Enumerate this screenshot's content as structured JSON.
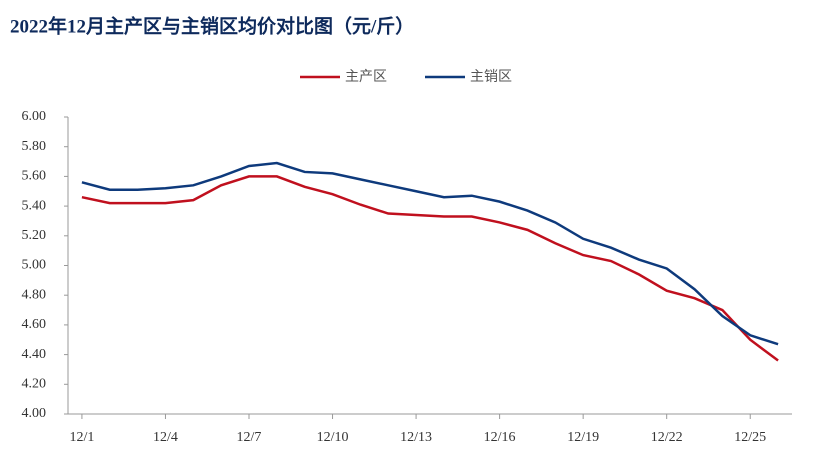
{
  "chart_data": {
    "type": "line",
    "title": "2022年12月主产区与主销区均价对比图（元/斤）",
    "categories": [
      "12/1",
      null,
      null,
      "12/4",
      null,
      null,
      "12/7",
      null,
      null,
      "12/10",
      null,
      null,
      "12/13",
      null,
      null,
      "12/16",
      null,
      null,
      "12/19",
      null,
      null,
      "12/22",
      null,
      null,
      "12/25",
      null
    ],
    "series": [
      {
        "name": "主产区",
        "color": "#c0101e",
        "values": [
          5.46,
          5.42,
          5.42,
          5.42,
          5.44,
          5.54,
          5.6,
          5.6,
          5.53,
          5.48,
          5.41,
          5.35,
          5.34,
          5.33,
          5.33,
          5.29,
          5.24,
          5.15,
          5.07,
          5.03,
          4.94,
          4.83,
          4.78,
          4.7,
          4.5,
          4.36
        ]
      },
      {
        "name": "主销区",
        "color": "#0e3a7c",
        "values": [
          5.56,
          5.51,
          5.51,
          5.52,
          5.54,
          5.6,
          5.67,
          5.69,
          5.63,
          5.62,
          5.58,
          5.54,
          5.5,
          5.46,
          5.47,
          5.43,
          5.37,
          5.29,
          5.18,
          5.12,
          5.04,
          4.98,
          4.84,
          4.66,
          4.53,
          4.47
        ]
      }
    ],
    "ylim": [
      4.0,
      6.0
    ],
    "yticks": [
      {
        "value": 4.0,
        "label": "4.00"
      },
      {
        "value": 4.2,
        "label": "4.20"
      },
      {
        "value": 4.4,
        "label": "4.40"
      },
      {
        "value": 4.6,
        "label": "4.60"
      },
      {
        "value": 4.8,
        "label": "4.80"
      },
      {
        "value": 5.0,
        "label": "5.00"
      },
      {
        "value": 5.2,
        "label": "5.20"
      },
      {
        "value": 5.4,
        "label": "5.40"
      },
      {
        "value": 5.6,
        "label": "5.60"
      },
      {
        "value": 5.8,
        "label": "5.80"
      },
      {
        "value": 6.0,
        "label": "6.00"
      }
    ],
    "grid": false,
    "legend": "top"
  }
}
